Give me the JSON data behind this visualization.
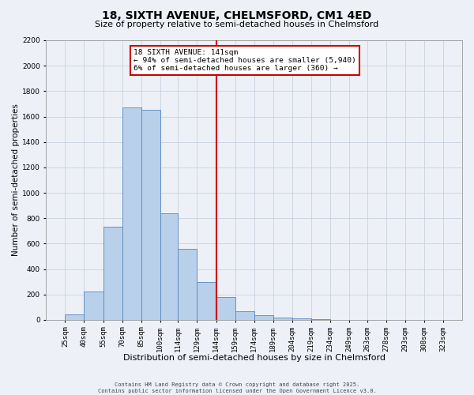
{
  "title": "18, SIXTH AVENUE, CHELMSFORD, CM1 4ED",
  "subtitle": "Size of property relative to semi-detached houses in Chelmsford",
  "bar_edges": [
    25,
    40,
    55,
    70,
    85,
    100,
    114,
    129,
    144,
    159,
    174,
    189,
    204,
    219,
    234,
    249,
    263,
    278,
    293,
    308,
    323
  ],
  "bar_heights": [
    40,
    220,
    730,
    1670,
    1650,
    840,
    560,
    300,
    180,
    70,
    35,
    20,
    10,
    5,
    0,
    0,
    0,
    0,
    0,
    0
  ],
  "bar_color": "#b8d0ea",
  "bar_edge_color": "#5585c0",
  "reference_line_x": 144,
  "reference_line_color": "#cc0000",
  "xlabel": "Distribution of semi-detached houses by size in Chelmsford",
  "ylabel": "Number of semi-detached properties",
  "ylim": [
    0,
    2200
  ],
  "yticks": [
    0,
    200,
    400,
    600,
    800,
    1000,
    1200,
    1400,
    1600,
    1800,
    2000,
    2200
  ],
  "annotation_title": "18 SIXTH AVENUE: 141sqm",
  "annotation_line1": "← 94% of semi-detached houses are smaller (5,940)",
  "annotation_line2": "6% of semi-detached houses are larger (360) →",
  "annotation_box_color": "#ffffff",
  "annotation_box_edge": "#cc0000",
  "grid_color": "#c8d0de",
  "background_color": "#edf1f7",
  "footer_line1": "Contains HM Land Registry data © Crown copyright and database right 2025.",
  "footer_line2": "Contains public sector information licensed under the Open Government Licence v3.0.",
  "title_fontsize": 10,
  "subtitle_fontsize": 8,
  "tick_label_size": 6.5,
  "xlabel_fontsize": 8,
  "ylabel_fontsize": 7.5,
  "annotation_fontsize": 6.8,
  "footer_fontsize": 5.0
}
